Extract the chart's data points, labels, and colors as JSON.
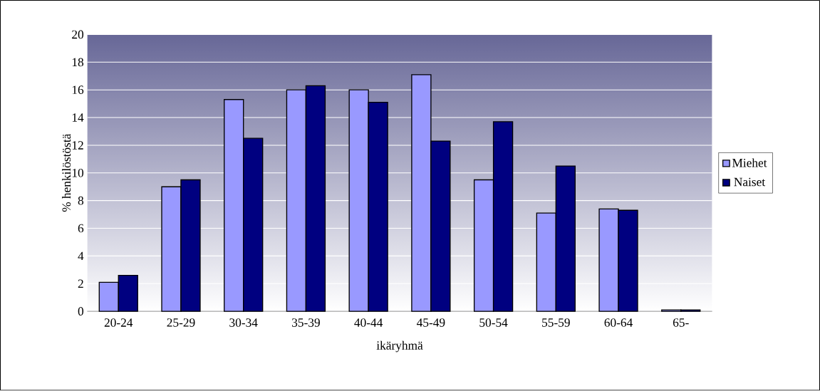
{
  "chart_data": {
    "type": "bar",
    "xlabel": "ikäryhmä",
    "ylabel": "% henkilöstöstä",
    "categories": [
      "20-24",
      "25-29",
      "30-34",
      "35-39",
      "40-44",
      "45-49",
      "50-54",
      "55-59",
      "60-64",
      "65-"
    ],
    "series": [
      {
        "name": "Miehet",
        "color": "#9999ff",
        "values": [
          2.1,
          9.0,
          15.3,
          16.0,
          16.0,
          17.1,
          9.5,
          7.1,
          7.4,
          0.1
        ]
      },
      {
        "name": "Naiset",
        "color": "#000080",
        "values": [
          2.6,
          9.5,
          12.5,
          16.3,
          15.1,
          12.3,
          13.7,
          10.5,
          7.3,
          0.1
        ]
      }
    ],
    "ylim": [
      0,
      20
    ],
    "yticks": [
      0,
      2,
      4,
      6,
      8,
      10,
      12,
      14,
      16,
      18,
      20
    ],
    "grid": "y",
    "legend": "right"
  }
}
